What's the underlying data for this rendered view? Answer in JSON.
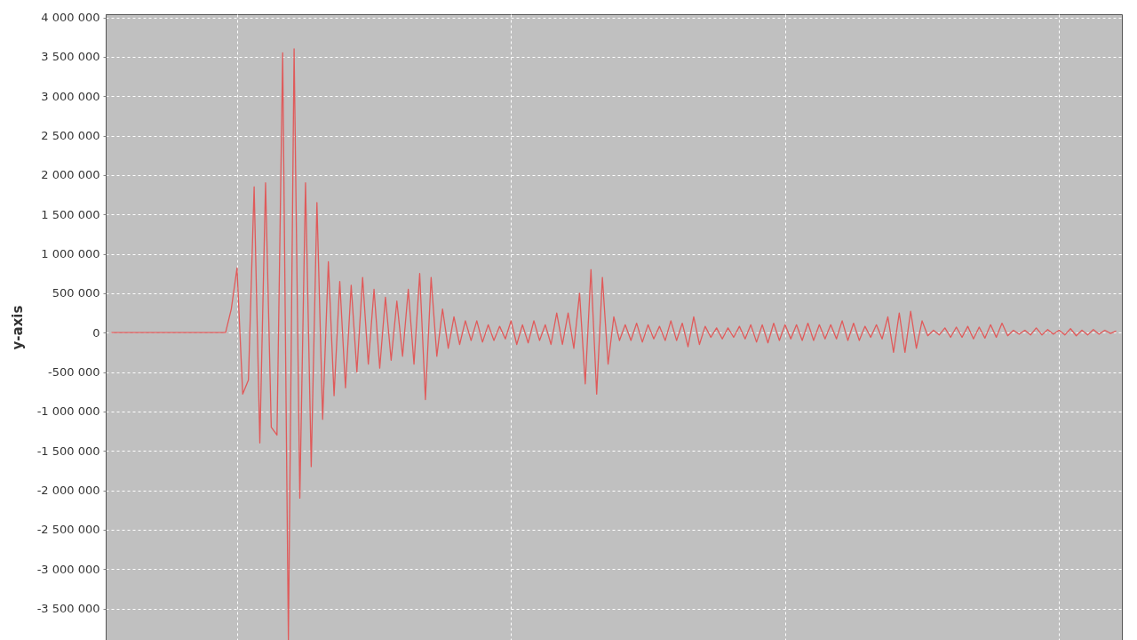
{
  "chart_data": {
    "type": "line",
    "ylabel": "y-axis",
    "ylim": [
      -3900000,
      4040000
    ],
    "yticks": [
      {
        "value": -3500000,
        "label": "-3 500 000"
      },
      {
        "value": -3000000,
        "label": "-3 000 000"
      },
      {
        "value": -2500000,
        "label": "-2 500 000"
      },
      {
        "value": -2000000,
        "label": "-2 000 000"
      },
      {
        "value": -1500000,
        "label": "-1 500 000"
      },
      {
        "value": -1000000,
        "label": "-1 000 000"
      },
      {
        "value": -500000,
        "label": "-500 000"
      },
      0,
      {
        "value": 500000,
        "label": "500 000"
      },
      {
        "value": 1000000,
        "label": "1 000 000"
      },
      {
        "value": 1500000,
        "label": "1 500 000"
      },
      {
        "value": 2000000,
        "label": "2 000 000"
      },
      {
        "value": 2500000,
        "label": "2 500 000"
      },
      {
        "value": 3000000,
        "label": "3 000 000"
      },
      {
        "value": 3500000,
        "label": "3 500 000"
      },
      {
        "value": 4000000,
        "label": "4 000 000"
      }
    ],
    "grid": true,
    "tick_labels": "y",
    "marker": "none",
    "line_style": "solid",
    "categories": [
      null,
      null,
      null,
      null,
      null,
      null,
      null,
      null,
      null,
      null,
      null,
      null,
      null,
      null,
      null,
      null,
      null,
      null,
      null,
      null,
      null,
      null,
      null,
      null,
      null,
      null,
      null,
      null,
      null,
      null,
      null,
      null,
      null,
      null,
      null,
      null,
      null,
      null,
      null,
      null,
      null,
      null,
      null,
      null,
      null,
      null,
      null,
      null,
      null,
      null,
      null,
      null,
      null,
      null,
      null,
      null,
      null,
      null,
      null,
      null,
      null,
      null,
      null,
      null,
      null,
      null,
      null,
      null,
      null,
      null,
      null,
      null,
      null,
      null,
      null,
      null,
      null,
      null,
      null,
      null,
      null,
      null,
      null,
      null,
      null,
      null,
      null,
      null,
      null,
      null,
      null,
      null,
      null,
      null,
      null,
      null,
      null,
      null,
      null,
      null,
      null,
      null,
      null,
      null,
      null,
      null,
      null,
      null,
      null,
      null,
      null,
      null,
      null,
      null,
      null,
      null,
      null,
      null,
      null,
      null,
      null,
      null,
      null,
      null,
      null,
      null,
      null,
      null,
      null,
      null,
      null,
      null,
      null,
      null,
      null,
      null,
      null,
      null,
      null,
      null,
      null,
      null,
      null,
      null,
      null,
      null,
      null,
      null,
      null,
      null,
      null,
      null,
      null,
      null,
      null,
      null,
      null,
      null,
      null,
      null,
      null,
      null,
      null,
      null,
      null,
      null,
      null,
      null,
      null,
      null,
      null,
      null,
      null,
      null,
      null,
      null,
      null
    ],
    "series": [
      {
        "color": "#e05a5a",
        "values": [
          0,
          0,
          0,
          0,
          0,
          0,
          0,
          0,
          0,
          0,
          0,
          0,
          0,
          0,
          0,
          0,
          0,
          0,
          0,
          0,
          0,
          300000,
          820000,
          -780000,
          -600000,
          1850000,
          -1400000,
          1900000,
          -1200000,
          -1300000,
          3550000,
          -3900000,
          3600000,
          -2100000,
          1900000,
          -1700000,
          1650000,
          -1100000,
          900000,
          -800000,
          650000,
          -700000,
          600000,
          -500000,
          700000,
          -400000,
          550000,
          -450000,
          450000,
          -350000,
          400000,
          -300000,
          550000,
          -400000,
          750000,
          -850000,
          700000,
          -300000,
          300000,
          -200000,
          200000,
          -150000,
          150000,
          -100000,
          150000,
          -120000,
          100000,
          -100000,
          80000,
          -80000,
          150000,
          -150000,
          100000,
          -130000,
          150000,
          -100000,
          100000,
          -150000,
          250000,
          -150000,
          250000,
          -200000,
          500000,
          -650000,
          800000,
          -780000,
          700000,
          -400000,
          200000,
          -100000,
          100000,
          -100000,
          120000,
          -120000,
          100000,
          -80000,
          80000,
          -100000,
          150000,
          -100000,
          120000,
          -180000,
          200000,
          -150000,
          80000,
          -60000,
          60000,
          -80000,
          60000,
          -60000,
          80000,
          -80000,
          100000,
          -120000,
          100000,
          -130000,
          120000,
          -100000,
          100000,
          -80000,
          100000,
          -100000,
          120000,
          -100000,
          100000,
          -80000,
          100000,
          -80000,
          150000,
          -100000,
          120000,
          -100000,
          80000,
          -60000,
          100000,
          -80000,
          200000,
          -250000,
          250000,
          -250000,
          270000,
          -200000,
          150000,
          -40000,
          30000,
          -30000,
          60000,
          -60000,
          70000,
          -60000,
          80000,
          -80000,
          70000,
          -70000,
          100000,
          -60000,
          120000,
          -40000,
          30000,
          -20000,
          30000,
          -30000,
          60000,
          -30000,
          40000,
          -20000,
          30000,
          -30000,
          50000,
          -40000,
          30000,
          -30000,
          40000,
          -20000,
          30000,
          -10000,
          20000
        ]
      }
    ]
  }
}
